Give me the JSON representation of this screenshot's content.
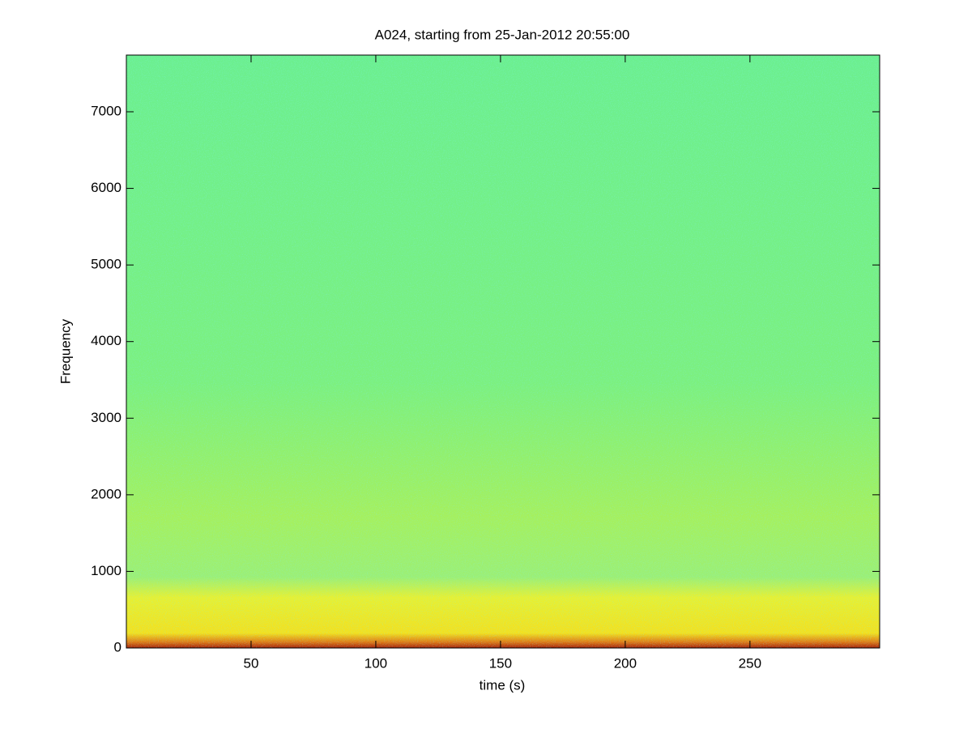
{
  "chart_data": {
    "type": "spectrogram",
    "title": "A024, starting from 25-Jan-2012 20:55:00",
    "x_label": "time (s)",
    "y_label": "Frequency",
    "xlim": [
      0,
      302
    ],
    "xticks": [
      50,
      100,
      150,
      200,
      250
    ],
    "ylim": [
      0,
      7740
    ],
    "yticks": [
      0,
      1000,
      2000,
      3000,
      4000,
      5000,
      6000,
      7000
    ]
  }
}
